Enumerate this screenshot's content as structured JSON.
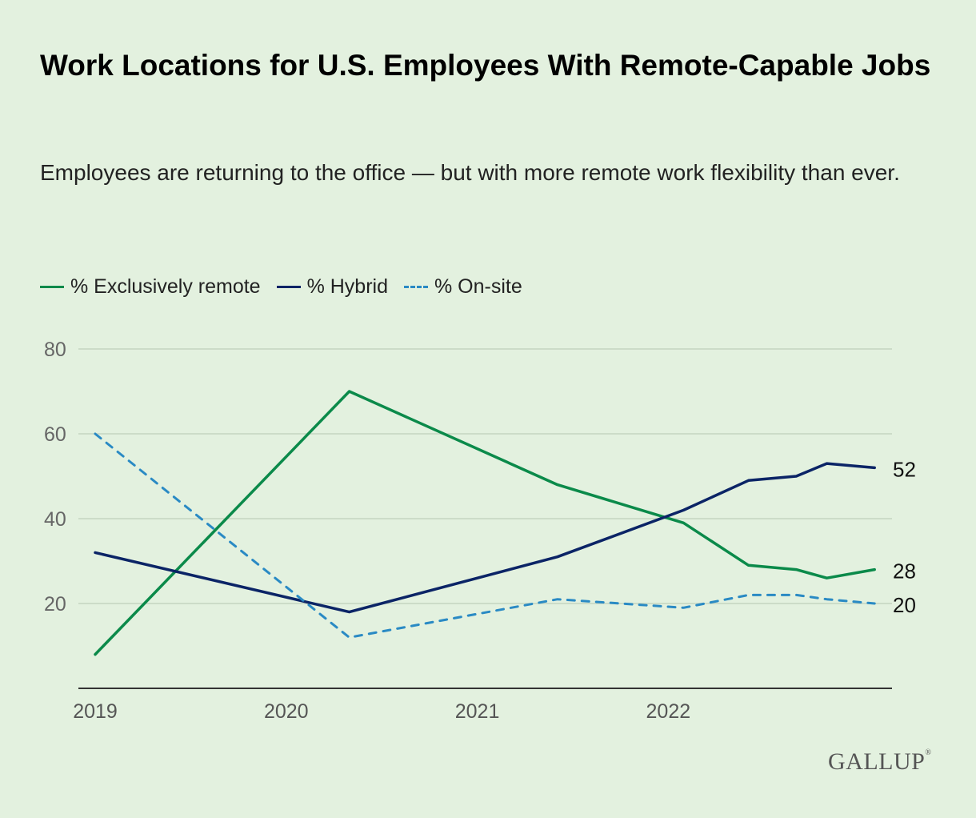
{
  "title": "Work Locations for U.S. Employees With Remote-Capable Jobs",
  "subtitle": "Employees are returning to the office — but with more remote work flexibility than ever.",
  "logo": "GALLUP",
  "chart_data": {
    "type": "line",
    "title": "Work Locations for U.S. Employees With Remote-Capable Jobs",
    "subtitle": "Employees are returning to the office — but with more remote work flexibility than ever.",
    "xlabel": "",
    "ylabel": "",
    "x_ticks": [
      "2019",
      "2020",
      "2021",
      "2022"
    ],
    "y_ticks": [
      20,
      40,
      60,
      80
    ],
    "xlim": [
      2019.0,
      2023.1
    ],
    "ylim": [
      0,
      80
    ],
    "grid": true,
    "legend_position": "top-left",
    "x": [
      2019.0,
      2020.33,
      2021.42,
      2022.08,
      2022.42,
      2022.67,
      2022.83,
      2023.08
    ],
    "series": [
      {
        "name": "% Exclusively remote",
        "color": "#0b8a4a",
        "dash": false,
        "values": [
          8,
          70,
          48,
          39,
          29,
          28,
          26,
          28
        ],
        "end_label": "28"
      },
      {
        "name": "% Hybrid",
        "color": "#0b2466",
        "dash": false,
        "values": [
          32,
          18,
          31,
          42,
          49,
          50,
          53,
          52
        ],
        "end_label": "52"
      },
      {
        "name": "% On-site",
        "color": "#2a8ac4",
        "dash": true,
        "values": [
          60,
          12,
          21,
          19,
          22,
          22,
          21,
          20
        ],
        "end_label": "20"
      }
    ]
  }
}
